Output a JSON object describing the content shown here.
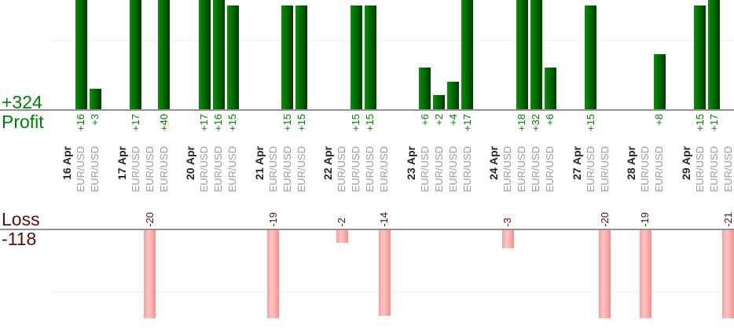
{
  "labels": {
    "profit_total": "+324",
    "profit_title": "Profit",
    "loss_title": "Loss",
    "loss_total": "-118"
  },
  "colors": {
    "profit_text": "#008000",
    "profit_side_text": "#007600",
    "loss_text": "#5a0e0e",
    "date_text": "#262626",
    "symbol_text": "#9b9b9b",
    "axis": "#919191",
    "gridline": "#efefef",
    "bar_green_left": "#099109",
    "bar_green_mid": "#026b02",
    "bar_green_right": "#013c01",
    "bar_pink_left": "#f99e9e",
    "bar_pink_mid": "#ffc6c6",
    "bar_pink_right": "#f58d8d"
  },
  "chart_data": {
    "type": "bar",
    "symbol": "EUR/USD",
    "profit_axis_label": "Profit",
    "loss_axis_label": "Loss",
    "profit_total": 324,
    "loss_total": -118,
    "approx_gridline_values": [
      10,
      -10
    ],
    "groups": [
      {
        "date": "16 Apr",
        "trades": [
          16,
          3
        ]
      },
      {
        "date": "17 Apr",
        "trades": [
          17,
          -20,
          40
        ]
      },
      {
        "date": "20 Apr",
        "trades": [
          17,
          16,
          15
        ]
      },
      {
        "date": "21 Apr",
        "trades": [
          -19,
          15,
          15
        ]
      },
      {
        "date": "22 Apr",
        "trades": [
          -2,
          15,
          15,
          -14
        ]
      },
      {
        "date": "23 Apr",
        "trades": [
          6,
          2,
          4,
          17
        ]
      },
      {
        "date": "24 Apr",
        "trades": [
          -3,
          18,
          32,
          6
        ]
      },
      {
        "date": "27 Apr",
        "trades": [
          15,
          -20
        ]
      },
      {
        "date": "28 Apr",
        "trades": [
          -19,
          8
        ]
      },
      {
        "date": "29 Apr",
        "trades": [
          15,
          17,
          -21
        ]
      }
    ]
  }
}
